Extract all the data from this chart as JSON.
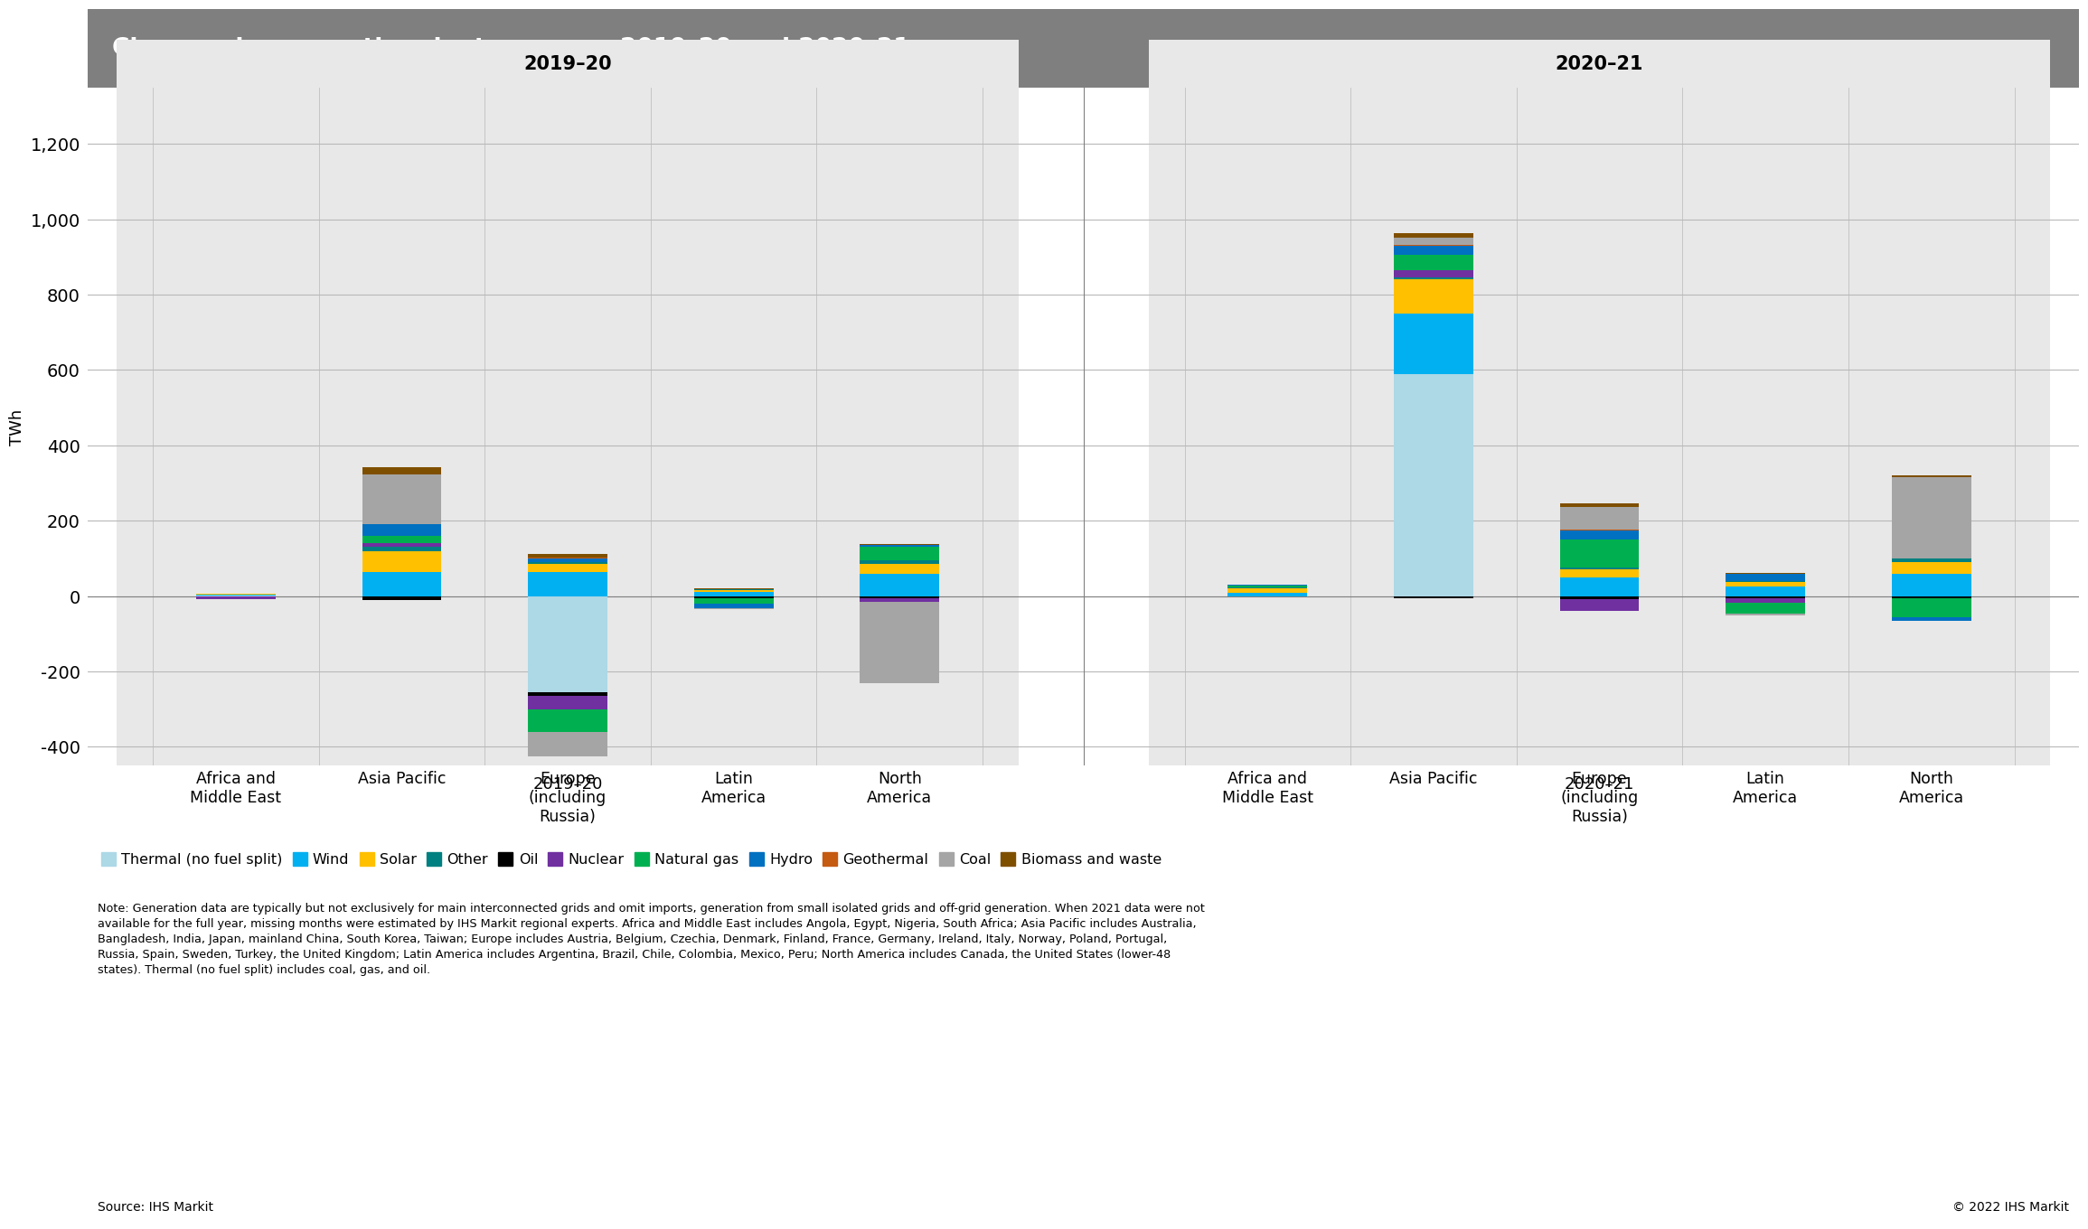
{
  "title": "Changes in generation, by type, over 2019–20 and 2020–21",
  "ylabel": "TWh",
  "ylim": [
    -450,
    1350
  ],
  "yticks": [
    -400,
    -200,
    0,
    200,
    400,
    600,
    800,
    1000,
    1200
  ],
  "regions": [
    "Africa and\nMiddle East",
    "Asia Pacific",
    "Europe\n(including\nRussia)",
    "Latin\nAmerica",
    "North\nAmerica"
  ],
  "period_labels": [
    "2019–20",
    "2020–21"
  ],
  "categories": [
    "Thermal (no fuel split)",
    "Wind",
    "Solar",
    "Other",
    "Oil",
    "Nuclear",
    "Natural gas",
    "Hydro",
    "Geothermal",
    "Coal",
    "Biomass and waste"
  ],
  "colors": {
    "Thermal (no fuel split)": "#add8e6",
    "Wind": "#00b0f0",
    "Solar": "#ffc000",
    "Other": "#008080",
    "Oil": "#000000",
    "Nuclear": "#7030a0",
    "Natural gas": "#00b050",
    "Hydro": "#0070c0",
    "Geothermal": "#c55a11",
    "Coal": "#a5a5a5",
    "Biomass and waste": "#7f4f00"
  },
  "data_2019_20": {
    "Africa and\nMiddle East": {
      "Thermal (no fuel split)": 2,
      "Wind": 3,
      "Solar": 1,
      "Other": 0,
      "Oil": 0,
      "Nuclear": -8,
      "Natural gas": 0,
      "Hydro": 0,
      "Geothermal": 0,
      "Coal": 0,
      "Biomass and waste": 0
    },
    "Asia Pacific": {
      "Thermal (no fuel split)": 0,
      "Wind": 65,
      "Solar": 55,
      "Other": 10,
      "Oil": -10,
      "Nuclear": 10,
      "Natural gas": 20,
      "Hydro": 30,
      "Geothermal": 2,
      "Coal": 130,
      "Biomass and waste": 20
    },
    "Europe\n(including\nRussia)": {
      "Thermal (no fuel split)": -255,
      "Wind": 65,
      "Solar": 20,
      "Other": 5,
      "Oil": -10,
      "Nuclear": -35,
      "Natural gas": -60,
      "Hydro": 10,
      "Geothermal": 2,
      "Coal": -65,
      "Biomass and waste": 10
    },
    "Latin\nAmerica": {
      "Thermal (no fuel split)": 0,
      "Wind": 10,
      "Solar": 5,
      "Other": 3,
      "Oil": -5,
      "Nuclear": 0,
      "Natural gas": -15,
      "Hydro": -12,
      "Geothermal": 0,
      "Coal": -3,
      "Biomass and waste": 2
    },
    "North\nAmerica": {
      "Thermal (no fuel split)": 0,
      "Wind": 60,
      "Solar": 25,
      "Other": 10,
      "Oil": -5,
      "Nuclear": -10,
      "Natural gas": 35,
      "Hydro": 5,
      "Geothermal": 0,
      "Coal": -215,
      "Biomass and waste": 3
    }
  },
  "data_2020_21": {
    "Africa and\nMiddle East": {
      "Thermal (no fuel split)": 0,
      "Wind": 8,
      "Solar": 12,
      "Other": 3,
      "Oil": 0,
      "Nuclear": 0,
      "Natural gas": 5,
      "Hydro": 3,
      "Geothermal": 0,
      "Coal": 0,
      "Biomass and waste": 0
    },
    "Asia Pacific": {
      "Thermal (no fuel split)": 590,
      "Wind": 160,
      "Solar": 90,
      "Other": 5,
      "Oil": -5,
      "Nuclear": 20,
      "Natural gas": 40,
      "Hydro": 25,
      "Geothermal": 2,
      "Coal": 20,
      "Biomass and waste": 10
    },
    "Europe\n(including\nRussia)": {
      "Thermal (no fuel split)": 0,
      "Wind": 50,
      "Solar": 20,
      "Other": 5,
      "Oil": -8,
      "Nuclear": -30,
      "Natural gas": 75,
      "Hydro": 25,
      "Geothermal": 2,
      "Coal": 60,
      "Biomass and waste": 10
    },
    "Latin\nAmerica": {
      "Thermal (no fuel split)": 0,
      "Wind": 25,
      "Solar": 12,
      "Other": 3,
      "Oil": -5,
      "Nuclear": -12,
      "Natural gas": -30,
      "Hydro": 20,
      "Geothermal": 0,
      "Coal": -5,
      "Biomass and waste": 2
    },
    "North\nAmerica": {
      "Thermal (no fuel split)": 0,
      "Wind": 60,
      "Solar": 30,
      "Other": 10,
      "Oil": -5,
      "Nuclear": 0,
      "Natural gas": -50,
      "Hydro": -10,
      "Geothermal": 0,
      "Coal": 215,
      "Biomass and waste": 5
    }
  },
  "note": "Note: Generation data are typically but not exclusively for main interconnected grids and omit imports, generation from small isolated grids and off-grid generation. When 2021 data were not\navailable for the full year, missing months were estimated by IHS Markit regional experts. Africa and Middle East includes Angola, Egypt, Nigeria, South Africa; Asia Pacific includes Australia,\nBangladesh, India, Japan, mainland China, South Korea, Taiwan; Europe includes Austria, Belgium, Czechia, Denmark, Finland, France, Germany, Ireland, Italy, Norway, Poland, Portugal,\nRussia, Spain, Sweden, Turkey, the United Kingdom; Latin America includes Argentina, Brazil, Chile, Colombia, Mexico, Peru; North America includes Canada, the United States (lower-48\nstates). Thermal (no fuel split) includes coal, gas, and oil.",
  "source": "Source: IHS Markit",
  "copyright": "© 2022 IHS Markit",
  "background_color": "#ffffff",
  "header_bg": "#7f7f7f",
  "group_bg": "#e8e8e8"
}
